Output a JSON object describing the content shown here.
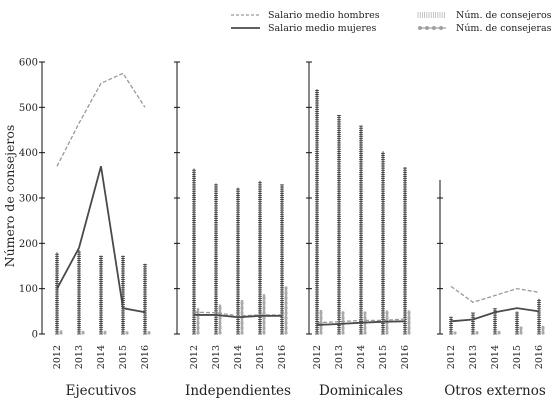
{
  "chart_data": {
    "type": "bar+line small multiples",
    "ylabel": "Número de consejeros",
    "ylim": [
      0,
      600
    ],
    "yticks": [
      0,
      100,
      200,
      300,
      400,
      500,
      600
    ],
    "years": [
      "2012",
      "2013",
      "2014",
      "2015",
      "2016"
    ],
    "legend": {
      "placement": "top-right",
      "items": [
        {
          "key": "salario_hombres",
          "label": "Salario medio hombres"
        },
        {
          "key": "salario_mujeres",
          "label": "Salario medio mujeres"
        },
        {
          "key": "consejeros",
          "label": "Núm. de consejeros"
        },
        {
          "key": "consejeras",
          "label": "Núm. de consejeras"
        }
      ]
    },
    "colors": {
      "salario_hombres": "#9a9a9a",
      "salario_mujeres": "#4a4a4a",
      "consejeros": "#222222",
      "consejeras": "#aaaaaa",
      "axis": "#111111"
    },
    "panels": [
      {
        "label": "Ejecutivos",
        "consejeros": [
          180,
          185,
          173,
          173,
          155
        ],
        "consejeras": [
          8,
          7,
          7,
          6,
          6
        ],
        "salario_hombres": [
          370,
          465,
          553,
          575,
          500
        ],
        "salario_mujeres": [
          100,
          190,
          370,
          57,
          48
        ]
      },
      {
        "label": "Independientes",
        "consejeros": [
          365,
          332,
          323,
          338,
          330
        ],
        "consejeras": [
          57,
          65,
          75,
          88,
          102
        ],
        "salario_hombres": [
          48,
          47,
          40,
          42,
          42
        ],
        "salario_mujeres": [
          42,
          42,
          37,
          40,
          40
        ]
      },
      {
        "label": "Dominicales",
        "consejeros": [
          540,
          483,
          460,
          403,
          368
        ],
        "consejeras": [
          53,
          50,
          48,
          52,
          52
        ],
        "salario_hombres": [
          25,
          27,
          30,
          30,
          33
        ],
        "salario_mujeres": [
          20,
          22,
          25,
          27,
          28
        ]
      },
      {
        "label": "Otros externos",
        "consejeros": [
          38,
          47,
          57,
          50,
          78
        ],
        "consejeras": [
          5,
          6,
          7,
          15,
          18
        ],
        "salario_hombres": [
          105,
          70,
          85,
          100,
          92
        ],
        "salario_mujeres": [
          28,
          32,
          48,
          57,
          50
        ]
      }
    ]
  }
}
